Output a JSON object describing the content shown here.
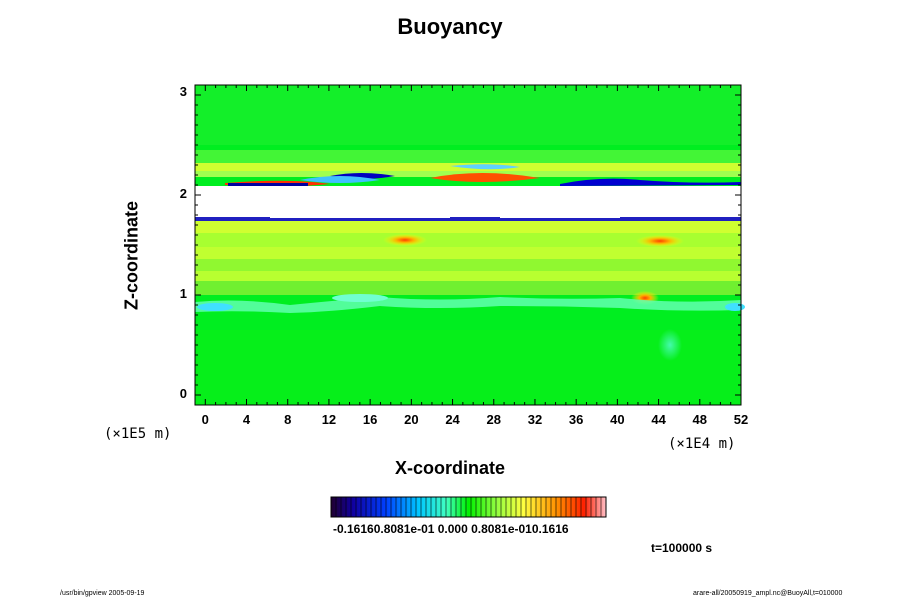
{
  "chart_data": {
    "type": "heatmap",
    "title": "Buoyancy",
    "xlabel": "X-coordinate",
    "ylabel": "Z-coordinate",
    "xlim": [
      -1,
      52
    ],
    "ylim": [
      -0.1,
      3.1
    ],
    "xticks": [
      "0",
      "4",
      "8",
      "12",
      "16",
      "20",
      "24",
      "28",
      "32",
      "36",
      "40",
      "44",
      "48",
      "52"
    ],
    "yticks": [
      "0",
      "1",
      "2",
      "3"
    ],
    "x_unit": "(×1E4 m)",
    "y_unit": "(×1E5 m)",
    "colorbar": {
      "min": -0.1616,
      "max": 0.1616,
      "tick_labels": "-0.16160.8081e-01 0.000 0.8081e-010.1616"
    },
    "time_label": "t=100000 s",
    "features": [
      {
        "kind": "negative",
        "x": 14,
        "z": 2.17
      },
      {
        "kind": "positive",
        "x": 13,
        "z": 2.1
      },
      {
        "kind": "positive",
        "x": 26,
        "z": 2.16
      },
      {
        "kind": "negative",
        "x": 27,
        "z": 2.25
      },
      {
        "kind": "positive",
        "x": 20,
        "z": 1.53
      },
      {
        "kind": "positive",
        "x": 44,
        "z": 1.53
      },
      {
        "kind": "positive",
        "x": 43,
        "z": 0.93
      },
      {
        "kind": "negative",
        "x": 45,
        "z": 0.45
      }
    ],
    "missing_band_z": [
      1.73,
      2.08
    ]
  },
  "footer": {
    "left": "/usr/bin/gpview 2005-09-19",
    "right": "arare-all/20050919_ampl.nc@BuoyAll,t=010000"
  }
}
